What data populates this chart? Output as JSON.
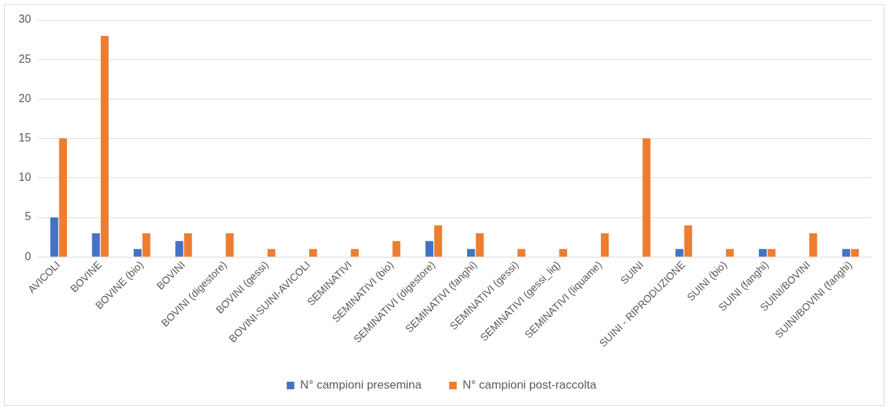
{
  "chart_data": {
    "type": "bar",
    "categories": [
      "AVICOLI",
      "BOVINE",
      "BOVINE (bio)",
      "BOVINI",
      "BOVINI (digestore)",
      "BOVINI (gessi)",
      "BOVINI-SUINI-AVICOLI",
      "SEMINATIVI",
      "SEMINATIVI (bio)",
      "SEMINATIVI (digestore)",
      "SEMINATIVI (fanghi)",
      "SEMINATIVI (gessi)",
      "SEMINATIVI (gessi_liq)",
      "SEMINATIVI (liquame)",
      "SUINI",
      "SUINI - RIPRODUZIONE",
      "SUINI (bio)",
      "SUINI (fanghi)",
      "SUINI/BOVINI",
      "SUINI/BOVINI (fanghi)"
    ],
    "series": [
      {
        "name": "N° campioni presemina",
        "color": "#4472c4",
        "values": [
          5,
          3,
          1,
          2,
          null,
          null,
          null,
          null,
          null,
          2,
          1,
          null,
          null,
          null,
          null,
          1,
          null,
          1,
          null,
          1
        ]
      },
      {
        "name": "N° campioni post-raccolta",
        "color": "#ed7d31",
        "values": [
          15,
          28,
          3,
          3,
          3,
          1,
          1,
          1,
          2,
          4,
          3,
          1,
          1,
          3,
          15,
          4,
          1,
          1,
          3,
          1
        ]
      }
    ],
    "ylim": [
      0,
      30
    ],
    "yticks": [
      0,
      5,
      10,
      15,
      20,
      25,
      30
    ],
    "grid": "y",
    "legend": "bottom"
  }
}
